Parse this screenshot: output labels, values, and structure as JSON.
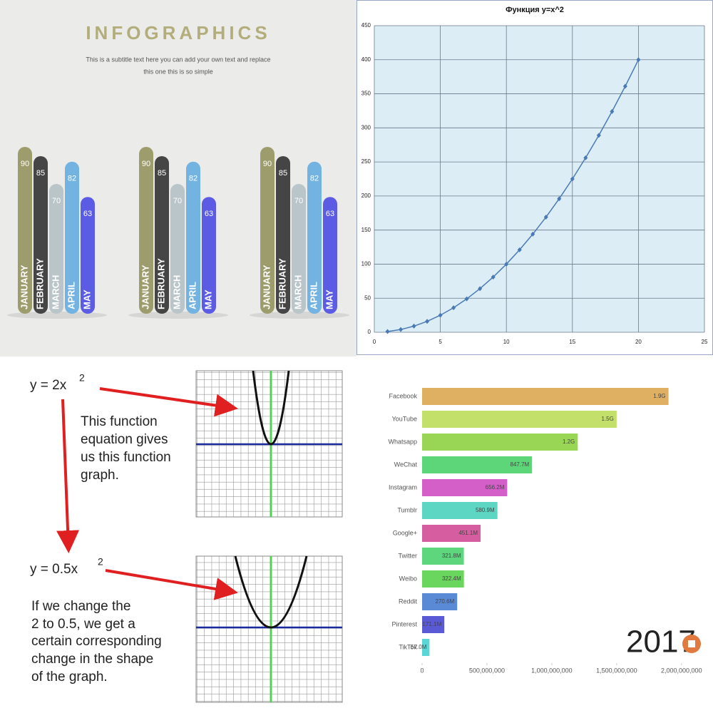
{
  "chart_data": [
    {
      "type": "bar",
      "title": "INFOGRAPHICS",
      "subtitle": [
        "This is a subtitle text here you can add your own text and replace",
        "this one this is so simple"
      ],
      "categories": [
        "JANUARY",
        "FEBRUARY",
        "MARCH",
        "APRIL",
        "MAY"
      ],
      "values": [
        90,
        85,
        70,
        82,
        63
      ],
      "colors": [
        "#9d9c6c",
        "#454545",
        "#b9c5c9",
        "#72b3e2",
        "#5b5be3"
      ]
    },
    {
      "type": "line",
      "title": "Функция y=x^2",
      "x": [
        1,
        2,
        3,
        4,
        5,
        6,
        7,
        8,
        9,
        10,
        11,
        12,
        13,
        14,
        15,
        16,
        17,
        18,
        19,
        20
      ],
      "series": [
        {
          "color": "#4a7ab5",
          "values": [
            1,
            4,
            9,
            16,
            25,
            36,
            49,
            64,
            81,
            100,
            121,
            144,
            169,
            196,
            225,
            256,
            289,
            324,
            361,
            400
          ]
        }
      ],
      "xlim": [
        0,
        25
      ],
      "xticks": [
        0,
        5,
        10,
        15,
        20,
        25
      ],
      "ylim": [
        0,
        450
      ],
      "yticks": [
        0,
        50,
        100,
        150,
        200,
        250,
        300,
        350,
        400,
        450
      ],
      "grid": true
    },
    {
      "type": "bar",
      "orientation": "horizontal",
      "categories": [
        "Facebook",
        "YouTube",
        "Whatsapp",
        "WeChat",
        "Instagram",
        "Tumblr",
        "Google+",
        "Twitter",
        "Weibo",
        "Reddit",
        "Pinterest",
        "TikTok"
      ],
      "values": [
        1900000000,
        1500000000,
        1200000000,
        847700000,
        656200000,
        580900000,
        451100000,
        321800000,
        322400000,
        270600000,
        171100000,
        57000000
      ],
      "value_labels": [
        "1.9G",
        "1.5G",
        "1.2G",
        "847.7M",
        "656.2M",
        "580.9M",
        "451.1M",
        "321.8M",
        "322.4M",
        "270.6M",
        "171.1M",
        "57.0M"
      ],
      "colors": [
        "#e0b062",
        "#c3e06a",
        "#9ad655",
        "#5dd67a",
        "#d45fc9",
        "#5dd6c4",
        "#d65ea0",
        "#5dd67e",
        "#6ad65d",
        "#5a8ad6",
        "#5a5ad6",
        "#5ad6d6"
      ],
      "xlim": [
        0,
        2100000000
      ],
      "xticks": [
        0,
        {
          "value": 500000000,
          "label": "500,000,000"
        },
        {
          "value": 1000000000,
          "label": "1,000,000,000"
        },
        {
          "value": 1500000000,
          "label": "1,500,000,000"
        },
        {
          "value": 2000000000,
          "label": "2,000,000,000"
        }
      ],
      "annotation": "2017"
    }
  ],
  "diagram": {
    "panels": [
      {
        "equation": "y = 2x",
        "exponent": "2",
        "caption": [
          "This function",
          "equation gives",
          "us this function",
          "graph."
        ]
      },
      {
        "equation": "y = 0.5x",
        "exponent": "2",
        "caption": [
          "If we change the",
          "2 to 0.5, we get a",
          "certain corresponding",
          "change in the shape",
          "of the graph."
        ]
      }
    ]
  }
}
